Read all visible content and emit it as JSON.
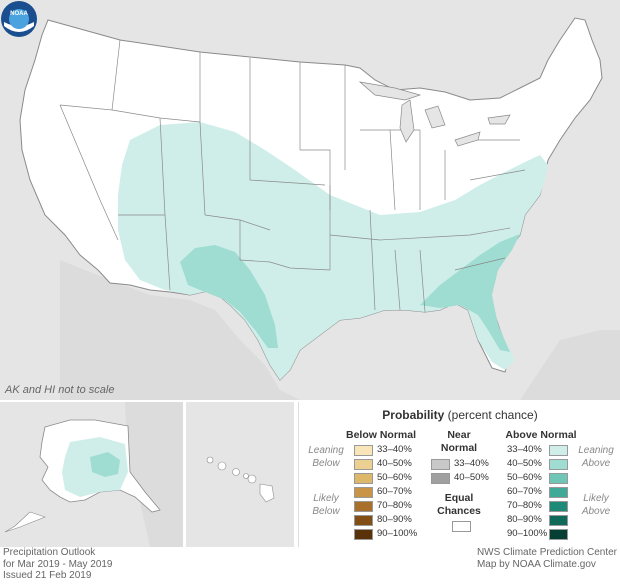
{
  "map": {
    "scale_note": "AK and HI not to scale",
    "logo_text": "NOAA",
    "colors": {
      "land": "#ffffff",
      "background": "#e5e5e5",
      "above_33_40": "#cfeee9",
      "above_40_50": "#9fdcd2",
      "border": "#888888"
    }
  },
  "legend": {
    "title_bold": "Probability",
    "title_rest": " (percent chance)",
    "below_normal": {
      "header": "Below Normal",
      "leaning_label": "Leaning Below",
      "likely_label": "Likely Below",
      "rows": [
        {
          "label": "33–40%",
          "color": "#f8e5b8"
        },
        {
          "label": "40–50%",
          "color": "#ecd092"
        },
        {
          "label": "50–60%",
          "color": "#ddb76a"
        },
        {
          "label": "60–70%",
          "color": "#c99445"
        },
        {
          "label": "70–80%",
          "color": "#a8702a"
        },
        {
          "label": "80–90%",
          "color": "#814f16"
        },
        {
          "label": "90–100%",
          "color": "#5a320a"
        }
      ]
    },
    "near_normal": {
      "header": "Near Normal",
      "rows": [
        {
          "label": "33–40%",
          "color": "#c8c8c8"
        },
        {
          "label": "40–50%",
          "color": "#a0a0a0"
        }
      ],
      "equal_chances": "Equal Chances"
    },
    "above_normal": {
      "header": "Above Normal",
      "leaning_label": "Leaning Above",
      "likely_label": "Likely Above",
      "rows": [
        {
          "label": "33–40%",
          "color": "#cfeee9"
        },
        {
          "label": "40–50%",
          "color": "#9fdcd2"
        },
        {
          "label": "50–60%",
          "color": "#6fc6b6"
        },
        {
          "label": "60–70%",
          "color": "#3faa97"
        },
        {
          "label": "70–80%",
          "color": "#1d8a77"
        },
        {
          "label": "80–90%",
          "color": "#0f6a5a"
        },
        {
          "label": "90–100%",
          "color": "#053f34"
        }
      ]
    }
  },
  "footer": {
    "left": [
      "Precipitation Outlook",
      "for Mar 2019 - May 2019",
      "Issued 21 Feb 2019"
    ],
    "right": [
      "NWS Climate Prediction Center",
      "Map by NOAA Climate.gov"
    ]
  }
}
